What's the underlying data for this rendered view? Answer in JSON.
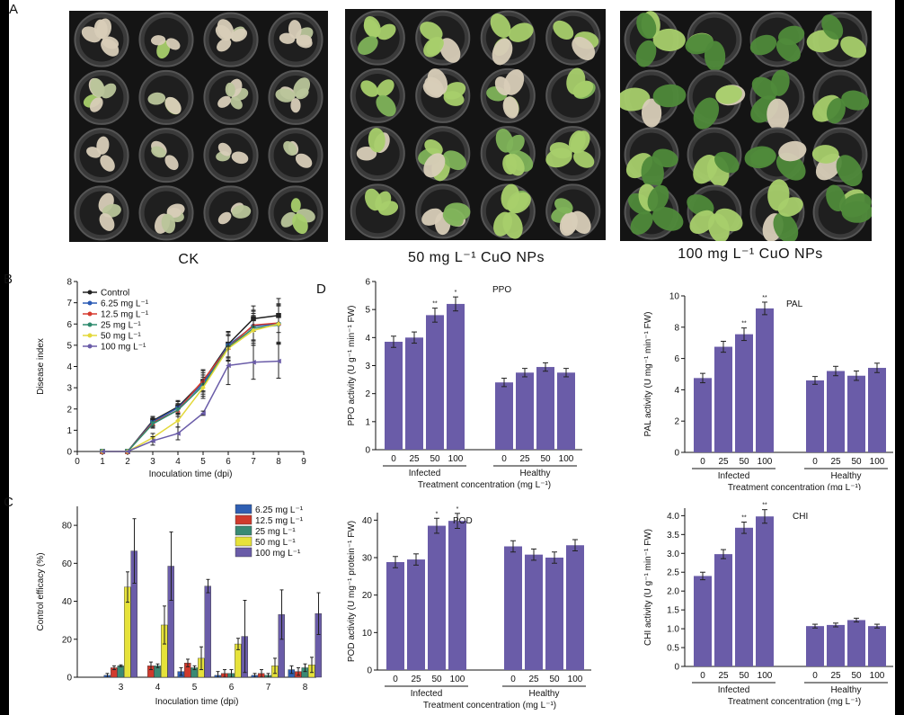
{
  "panel_letters": {
    "a": "A",
    "b": "B",
    "c": "C",
    "d": "D"
  },
  "photos": {
    "ck": {
      "caption": "CK"
    },
    "p50": {
      "caption": "50 mg L⁻¹ CuO NPs"
    },
    "p100": {
      "caption": "100 mg L⁻¹ CuO NPs"
    }
  },
  "colors": {
    "purple_bar": "#6a5ca8",
    "pot": "#3a3a3a",
    "soil": "#1f1f1f",
    "leaf_green": "#4f8a3a",
    "leaf_light": "#a8cf6b",
    "leaf_dead": "#d8cdb8"
  },
  "chart_data": [
    {
      "id": "B",
      "type": "line",
      "xlabel": "Inoculation time (dpi)",
      "ylabel": "Disease index",
      "xlim": [
        0,
        9
      ],
      "ylim": [
        0,
        8
      ],
      "xticks": [
        "0",
        "1",
        "2",
        "3",
        "4",
        "5",
        "6",
        "7",
        "8",
        "9"
      ],
      "yticks": [
        "0",
        "1",
        "2",
        "3",
        "4",
        "5",
        "6",
        "7",
        "8"
      ],
      "x": [
        1,
        2,
        3,
        4,
        5,
        6,
        7,
        8
      ],
      "series": [
        {
          "name": "Control",
          "color": "#222222",
          "marker": "square",
          "values": [
            0,
            0,
            1.45,
            2.1,
            3.3,
            5.05,
            6.25,
            6.4
          ],
          "errors": [
            0,
            0,
            0.2,
            0.3,
            0.5,
            0.6,
            0.6,
            0.8
          ]
        },
        {
          "name": "6.25 mg L⁻¹",
          "color": "#2b5bb5",
          "marker": "circle",
          "values": [
            0,
            0,
            1.4,
            2.05,
            3.2,
            5.0,
            5.9,
            6.0
          ],
          "errors": [
            0,
            0,
            0.2,
            0.3,
            0.5,
            0.6,
            0.7,
            0.9
          ]
        },
        {
          "name": "12.5 mg L⁻¹",
          "color": "#d63b2f",
          "marker": "triangle-up",
          "values": [
            0,
            0,
            1.35,
            1.95,
            3.35,
            4.9,
            5.95,
            6.05
          ],
          "errors": [
            0,
            0,
            0.2,
            0.3,
            0.5,
            0.6,
            0.7,
            0.9
          ]
        },
        {
          "name": "25 mg L⁻¹",
          "color": "#2e8a6e",
          "marker": "triangle-down",
          "values": [
            0,
            0,
            1.3,
            1.95,
            3.1,
            4.9,
            5.8,
            5.95
          ],
          "errors": [
            0,
            0,
            0.2,
            0.3,
            0.5,
            0.6,
            0.7,
            0.9
          ]
        },
        {
          "name": "50 mg L⁻¹",
          "color": "#e3d83a",
          "marker": "diamond",
          "values": [
            0,
            0,
            0.65,
            1.45,
            3.0,
            4.85,
            5.7,
            6.0
          ],
          "errors": [
            0,
            0,
            0.2,
            0.3,
            0.5,
            0.6,
            0.7,
            0.9
          ]
        },
        {
          "name": "100 mg L⁻¹",
          "color": "#6a5ca8",
          "marker": "triangle-left",
          "values": [
            0,
            0,
            0.5,
            0.85,
            1.8,
            4.05,
            4.2,
            4.25
          ],
          "errors": [
            0,
            0,
            0.2,
            0.3,
            0.1,
            0.9,
            0.8,
            0.8
          ]
        }
      ]
    },
    {
      "id": "C",
      "type": "bar",
      "xlabel": "Inoculation time (dpi)",
      "ylabel": "Control efficacy (%)",
      "ylim": [
        0,
        90
      ],
      "yticks": [
        "0",
        "20",
        "40",
        "60",
        "80"
      ],
      "categories": [
        "3",
        "4",
        "5",
        "6",
        "7",
        "8"
      ],
      "series": [
        {
          "name": "6.25 mg L⁻¹",
          "color": "#2f5fb3",
          "values": [
            1,
            0,
            3,
            1,
            1,
            4
          ],
          "errors": [
            1,
            0,
            2,
            2,
            1,
            2
          ]
        },
        {
          "name": "12.5 mg L⁻¹",
          "color": "#d03a2d",
          "values": [
            5,
            6,
            7.5,
            2,
            2,
            3
          ],
          "errors": [
            1,
            2,
            2,
            2,
            2,
            2
          ]
        },
        {
          "name": "25 mg L⁻¹",
          "color": "#3a8a74",
          "values": [
            6,
            6,
            5,
            2,
            1,
            5
          ],
          "errors": [
            0.5,
            1,
            1,
            2,
            1,
            2
          ]
        },
        {
          "name": "50 mg L⁻¹",
          "color": "#e6e23a",
          "values": [
            47.5,
            27.5,
            10,
            17.5,
            6,
            6.5
          ],
          "errors": [
            8,
            10,
            6,
            3,
            4,
            4
          ]
        },
        {
          "name": "100 mg L⁻¹",
          "color": "#6a5ca8",
          "values": [
            66.5,
            58.5,
            48,
            21.5,
            33,
            33.5
          ],
          "errors": [
            17,
            18,
            3.5,
            19,
            13,
            11
          ]
        }
      ]
    },
    {
      "id": "PPO",
      "type": "bar",
      "title": "PPO",
      "ylabel": "PPO activity (U g⁻¹ min⁻¹ FW)",
      "xlabel": "Treatment concentration (mg L⁻¹)",
      "ylim": [
        0,
        6
      ],
      "yticks": [
        "0",
        "1",
        "2",
        "3",
        "4",
        "5",
        "6"
      ],
      "categories": [
        "0",
        "25",
        "50",
        "100"
      ],
      "groups": [
        "Infected",
        "Healthy"
      ],
      "series": [
        {
          "name": "Infected",
          "values": [
            3.85,
            4.0,
            4.8,
            5.2
          ],
          "errors": [
            0.2,
            0.2,
            0.25,
            0.25
          ],
          "marks": [
            "",
            "",
            "**",
            "*"
          ]
        },
        {
          "name": "Healthy",
          "values": [
            2.4,
            2.75,
            2.95,
            2.75
          ],
          "errors": [
            0.15,
            0.15,
            0.15,
            0.15
          ],
          "marks": [
            "",
            "",
            "",
            ""
          ]
        }
      ]
    },
    {
      "id": "PAL",
      "type": "bar",
      "title": "PAL",
      "ylabel": "PAL activity (U mg⁻¹ min⁻¹ FW)",
      "xlabel": "Treatment concentration (mg L⁻¹)",
      "ylim": [
        0,
        10
      ],
      "yticks": [
        "0",
        "2",
        "4",
        "6",
        "8",
        "10"
      ],
      "categories": [
        "0",
        "25",
        "50",
        "100"
      ],
      "groups": [
        "Infected",
        "Healthy"
      ],
      "series": [
        {
          "name": "Infected",
          "values": [
            4.75,
            6.75,
            7.55,
            9.2
          ],
          "errors": [
            0.3,
            0.35,
            0.4,
            0.4
          ],
          "marks": [
            "",
            "",
            "**",
            "**"
          ]
        },
        {
          "name": "Healthy",
          "values": [
            4.6,
            5.2,
            4.9,
            5.4
          ],
          "errors": [
            0.25,
            0.3,
            0.3,
            0.3
          ],
          "marks": [
            "",
            "",
            "",
            ""
          ]
        }
      ]
    },
    {
      "id": "POD",
      "type": "bar",
      "title": "POD",
      "ylabel": "POD activity (U mg⁻¹ protein⁻¹ FW)",
      "xlabel": "Treatment concentration (mg L⁻¹)",
      "ylim": [
        0,
        42
      ],
      "yticks": [
        "0",
        "10",
        "20",
        "30",
        "40"
      ],
      "categories": [
        "0",
        "25",
        "50",
        "100"
      ],
      "groups": [
        "Infected",
        "Healthy"
      ],
      "series": [
        {
          "name": "Infected",
          "values": [
            28.8,
            29.5,
            38.5,
            39.8
          ],
          "errors": [
            1.5,
            1.5,
            2,
            2
          ],
          "marks": [
            "",
            "",
            "*",
            "*"
          ]
        },
        {
          "name": "Healthy",
          "values": [
            33.0,
            30.8,
            30.0,
            33.3
          ],
          "errors": [
            1.5,
            1.5,
            1.5,
            1.5
          ],
          "marks": [
            "",
            "",
            "",
            ""
          ]
        }
      ]
    },
    {
      "id": "CHI",
      "type": "bar",
      "title": "CHI",
      "ylabel": "CHI activity (U g⁻¹ min⁻¹ FW)",
      "xlabel": "Treatment concentration (mg L⁻¹)",
      "ylim": [
        0,
        4.2
      ],
      "yticks": [
        "0",
        "0.5",
        "1.0",
        "1.5",
        "2.0",
        "2.5",
        "3.0",
        "3.5",
        "4.0"
      ],
      "categories": [
        "0",
        "25",
        "50",
        "100"
      ],
      "groups": [
        "Infected",
        "Healthy"
      ],
      "series": [
        {
          "name": "Infected",
          "values": [
            2.4,
            2.98,
            3.68,
            3.98
          ],
          "errors": [
            0.1,
            0.12,
            0.15,
            0.18
          ],
          "marks": [
            "",
            "",
            "**",
            "**"
          ]
        },
        {
          "name": "Healthy",
          "values": [
            1.07,
            1.1,
            1.23,
            1.07
          ],
          "errors": [
            0.05,
            0.05,
            0.05,
            0.05
          ],
          "marks": [
            "",
            "",
            "",
            ""
          ]
        }
      ]
    }
  ]
}
